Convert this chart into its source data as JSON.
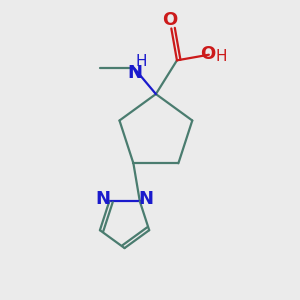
{
  "background_color": "#ebebeb",
  "bond_color": "#4a7c6f",
  "nitrogen_color": "#1a1acc",
  "oxygen_color": "#cc1a1a",
  "line_width": 1.6,
  "figsize": [
    3.0,
    3.0
  ],
  "dpi": 100,
  "xlim": [
    0,
    10
  ],
  "ylim": [
    0,
    10
  ]
}
